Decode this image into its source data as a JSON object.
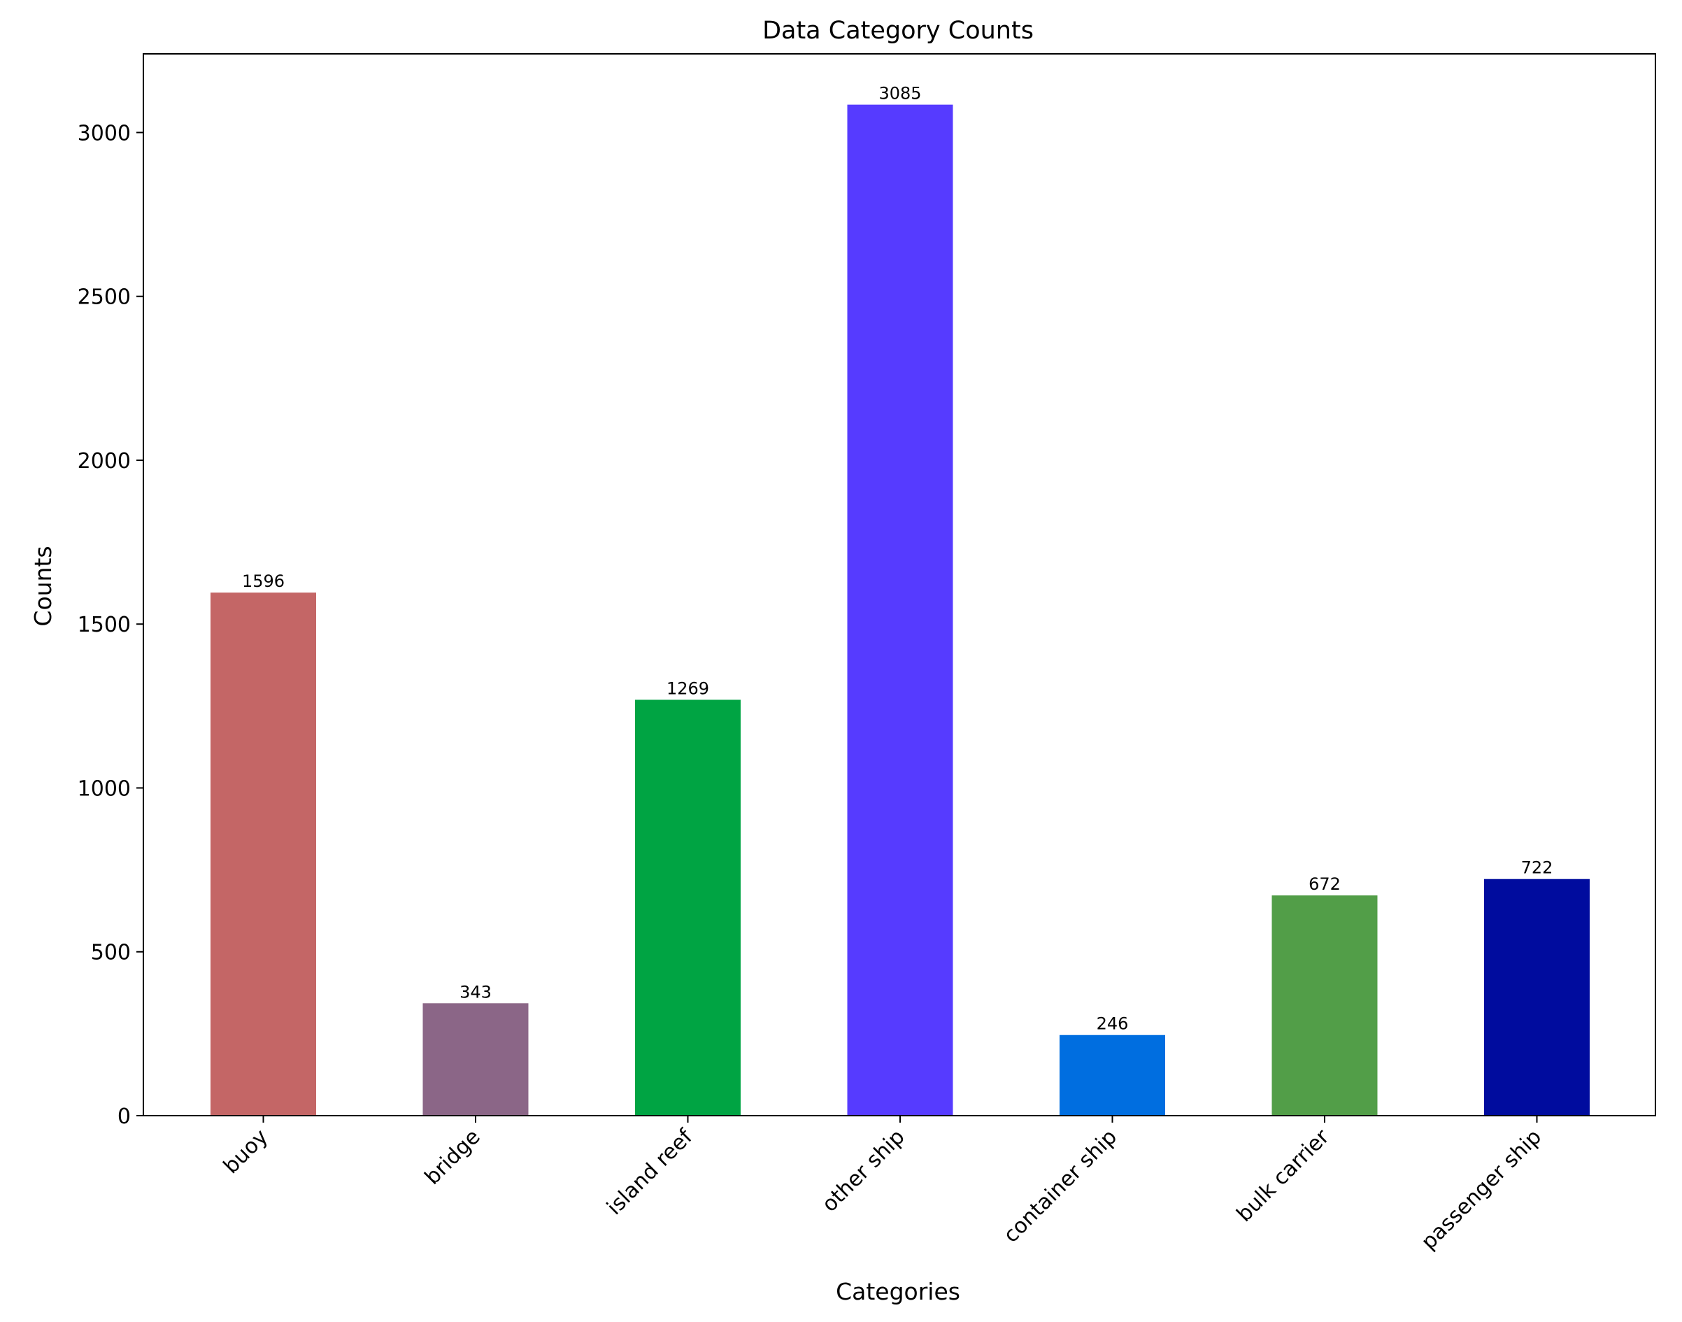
{
  "chart_data": {
    "type": "bar",
    "title": "Data Category Counts",
    "xlabel": "Categories",
    "ylabel": "Counts",
    "categories": [
      "buoy",
      "bridge",
      "island reef",
      "other ship",
      "container ship",
      "bulk carrier",
      "passenger ship"
    ],
    "values": [
      1596,
      343,
      1269,
      3085,
      246,
      672,
      722
    ],
    "data_labels": [
      "1596",
      "343",
      "1269",
      "3085",
      "246",
      "672",
      "722"
    ],
    "colors": [
      "#c46666",
      "#8b6687",
      "#00a443",
      "#563bff",
      "#006ee0",
      "#529e48",
      "#000c9e"
    ],
    "ylim": [
      0,
      3240
    ],
    "yticks": [
      0,
      500,
      1000,
      1500,
      2000,
      2500,
      3000
    ],
    "ytick_labels": [
      "0",
      "500",
      "1000",
      "1500",
      "2000",
      "2500",
      "3000"
    ],
    "grid": false,
    "legend": false
  }
}
